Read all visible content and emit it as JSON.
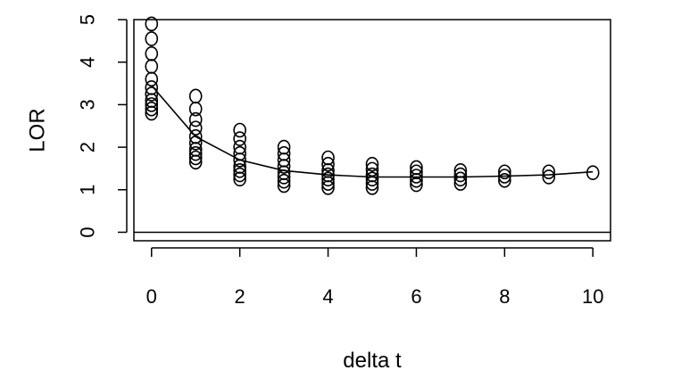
{
  "chart_data": {
    "type": "scatter",
    "xlabel": "delta t",
    "ylabel": "LOR",
    "xlim": [
      -0.4,
      10.4
    ],
    "ylim": [
      -0.2,
      5.0
    ],
    "xticks": [
      0,
      2,
      4,
      6,
      8,
      10
    ],
    "yticks": [
      0,
      1,
      2,
      3,
      4,
      5
    ],
    "grid": false,
    "reference_line_y": 0,
    "points": [
      {
        "x": 0,
        "y": 2.8
      },
      {
        "x": 0,
        "y": 2.9
      },
      {
        "x": 0,
        "y": 3.0
      },
      {
        "x": 0,
        "y": 3.1
      },
      {
        "x": 0,
        "y": 3.25
      },
      {
        "x": 0,
        "y": 3.4
      },
      {
        "x": 0,
        "y": 3.6
      },
      {
        "x": 0,
        "y": 3.9
      },
      {
        "x": 0,
        "y": 4.2
      },
      {
        "x": 0,
        "y": 4.55
      },
      {
        "x": 0,
        "y": 4.9
      },
      {
        "x": 1,
        "y": 1.65
      },
      {
        "x": 1,
        "y": 1.75
      },
      {
        "x": 1,
        "y": 1.85
      },
      {
        "x": 1,
        "y": 1.95
      },
      {
        "x": 1,
        "y": 2.1
      },
      {
        "x": 1,
        "y": 2.25
      },
      {
        "x": 1,
        "y": 2.45
      },
      {
        "x": 1,
        "y": 2.65
      },
      {
        "x": 1,
        "y": 2.9
      },
      {
        "x": 1,
        "y": 3.2
      },
      {
        "x": 2,
        "y": 1.25
      },
      {
        "x": 2,
        "y": 1.35
      },
      {
        "x": 2,
        "y": 1.45
      },
      {
        "x": 2,
        "y": 1.55
      },
      {
        "x": 2,
        "y": 1.7
      },
      {
        "x": 2,
        "y": 1.85
      },
      {
        "x": 2,
        "y": 2.0
      },
      {
        "x": 2,
        "y": 2.2
      },
      {
        "x": 2,
        "y": 2.4
      },
      {
        "x": 3,
        "y": 1.1
      },
      {
        "x": 3,
        "y": 1.2
      },
      {
        "x": 3,
        "y": 1.3
      },
      {
        "x": 3,
        "y": 1.4
      },
      {
        "x": 3,
        "y": 1.55
      },
      {
        "x": 3,
        "y": 1.7
      },
      {
        "x": 3,
        "y": 1.85
      },
      {
        "x": 3,
        "y": 2.0
      },
      {
        "x": 4,
        "y": 1.05
      },
      {
        "x": 4,
        "y": 1.15
      },
      {
        "x": 4,
        "y": 1.25
      },
      {
        "x": 4,
        "y": 1.35
      },
      {
        "x": 4,
        "y": 1.45
      },
      {
        "x": 4,
        "y": 1.6
      },
      {
        "x": 4,
        "y": 1.75
      },
      {
        "x": 5,
        "y": 1.05
      },
      {
        "x": 5,
        "y": 1.15
      },
      {
        "x": 5,
        "y": 1.25
      },
      {
        "x": 5,
        "y": 1.35
      },
      {
        "x": 5,
        "y": 1.48
      },
      {
        "x": 5,
        "y": 1.6
      },
      {
        "x": 6,
        "y": 1.12
      },
      {
        "x": 6,
        "y": 1.22
      },
      {
        "x": 6,
        "y": 1.32
      },
      {
        "x": 6,
        "y": 1.42
      },
      {
        "x": 6,
        "y": 1.52
      },
      {
        "x": 7,
        "y": 1.15
      },
      {
        "x": 7,
        "y": 1.25
      },
      {
        "x": 7,
        "y": 1.35
      },
      {
        "x": 7,
        "y": 1.45
      },
      {
        "x": 8,
        "y": 1.22
      },
      {
        "x": 8,
        "y": 1.32
      },
      {
        "x": 8,
        "y": 1.42
      },
      {
        "x": 9,
        "y": 1.3
      },
      {
        "x": 9,
        "y": 1.42
      },
      {
        "x": 10,
        "y": 1.4
      }
    ],
    "fit_line": [
      {
        "x": 0,
        "y": 3.45
      },
      {
        "x": 1,
        "y": 2.25
      },
      {
        "x": 2,
        "y": 1.7
      },
      {
        "x": 3,
        "y": 1.45
      },
      {
        "x": 4,
        "y": 1.35
      },
      {
        "x": 5,
        "y": 1.3
      },
      {
        "x": 6,
        "y": 1.3
      },
      {
        "x": 7,
        "y": 1.3
      },
      {
        "x": 8,
        "y": 1.32
      },
      {
        "x": 9,
        "y": 1.35
      },
      {
        "x": 10,
        "y": 1.42
      }
    ]
  }
}
